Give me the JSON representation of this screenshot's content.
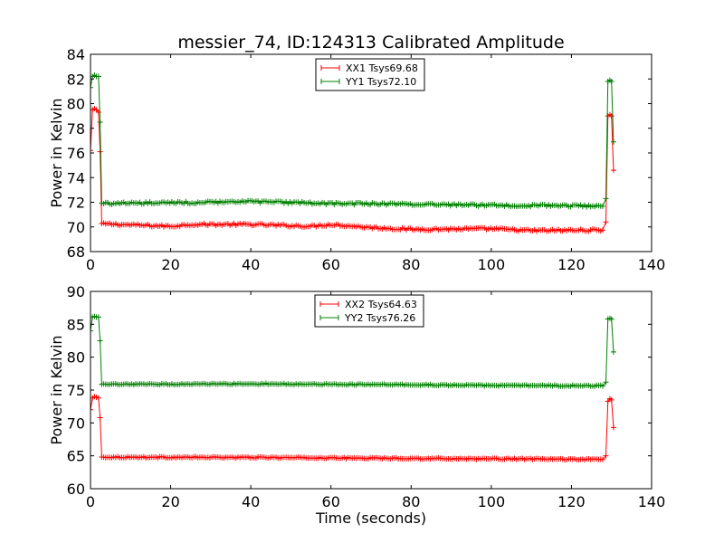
{
  "figure": {
    "title": "messier_74, ID:124313 Calibrated Amplitude"
  },
  "chart_data": [
    {
      "type": "line",
      "title": "messier_74, ID:124313 Calibrated Amplitude",
      "xlabel": "",
      "ylabel": "Power in Kelvin",
      "xlim": [
        0,
        140
      ],
      "ylim": [
        68,
        84
      ],
      "xticks": [
        0,
        20,
        40,
        60,
        80,
        100,
        120,
        140
      ],
      "yticks": [
        68,
        70,
        72,
        74,
        76,
        78,
        80,
        82,
        84
      ],
      "grid": false,
      "legend_position": "top-center",
      "marker": "plus",
      "series": [
        {
          "name": "XX1 Tsys69.68",
          "color": "#ff0000",
          "pre": [
            [
              0,
              76.2
            ],
            [
              0.5,
              79.5
            ],
            [
              1.0,
              79.6
            ],
            [
              1.5,
              79.5
            ],
            [
              2.0,
              79.3
            ],
            [
              2.4,
              76.1
            ]
          ],
          "baseline_start": 2.8,
          "baseline_end": 128.2,
          "baseline_step": 0.5,
          "baseline": [
            [
              2.8,
              70.25
            ],
            [
              20,
              70.05
            ],
            [
              25,
              70.2
            ],
            [
              40,
              70.2
            ],
            [
              55,
              70.05
            ],
            [
              60,
              70.2
            ],
            [
              70,
              69.95
            ],
            [
              80,
              69.8
            ],
            [
              100,
              69.85
            ],
            [
              110,
              69.7
            ],
            [
              128.2,
              69.75
            ]
          ],
          "baseline_noise": 0.09,
          "post": [
            [
              128.6,
              70.4
            ],
            [
              129.1,
              79.0
            ],
            [
              129.6,
              79.1
            ],
            [
              130.0,
              79.0
            ],
            [
              130.5,
              74.6
            ]
          ]
        },
        {
          "name": "YY1 Tsys72.10",
          "color": "#008000",
          "pre": [
            [
              0,
              81.3
            ],
            [
              0.5,
              82.2
            ],
            [
              1.0,
              82.3
            ],
            [
              1.5,
              82.2
            ],
            [
              2.0,
              82.2
            ],
            [
              2.4,
              78.5
            ]
          ],
          "baseline_start": 2.8,
          "baseline_end": 128.2,
          "baseline_step": 0.5,
          "baseline": [
            [
              2.8,
              71.9
            ],
            [
              20,
              71.95
            ],
            [
              40,
              72.05
            ],
            [
              60,
              71.9
            ],
            [
              80,
              71.85
            ],
            [
              100,
              71.75
            ],
            [
              128.2,
              71.7
            ]
          ],
          "baseline_noise": 0.09,
          "post": [
            [
              128.6,
              72.3
            ],
            [
              129.1,
              81.8
            ],
            [
              129.6,
              81.9
            ],
            [
              130.0,
              81.8
            ],
            [
              130.5,
              76.9
            ]
          ]
        }
      ]
    },
    {
      "type": "line",
      "title": "",
      "xlabel": "Time (seconds)",
      "ylabel": "Power in Kelvin",
      "xlim": [
        0,
        140
      ],
      "ylim": [
        60,
        90
      ],
      "xticks": [
        0,
        20,
        40,
        60,
        80,
        100,
        120,
        140
      ],
      "yticks": [
        60,
        65,
        70,
        75,
        80,
        85,
        90
      ],
      "grid": false,
      "legend_position": "top-center",
      "marker": "plus",
      "series": [
        {
          "name": "XX2 Tsys64.63",
          "color": "#ff0000",
          "pre": [
            [
              0,
              72.0
            ],
            [
              0.5,
              73.8
            ],
            [
              1.0,
              74.0
            ],
            [
              1.5,
              73.9
            ],
            [
              2.0,
              73.8
            ],
            [
              2.4,
              70.8
            ]
          ],
          "baseline_start": 2.8,
          "baseline_end": 128.2,
          "baseline_step": 0.5,
          "baseline": [
            [
              2.8,
              64.8
            ],
            [
              40,
              64.75
            ],
            [
              80,
              64.6
            ],
            [
              100,
              64.55
            ],
            [
              128.2,
              64.45
            ]
          ],
          "baseline_noise": 0.09,
          "post": [
            [
              128.6,
              65.0
            ],
            [
              129.1,
              73.3
            ],
            [
              129.6,
              73.7
            ],
            [
              130.0,
              73.5
            ],
            [
              130.5,
              69.3
            ]
          ]
        },
        {
          "name": "YY2 Tsys76.26",
          "color": "#008000",
          "pre": [
            [
              0,
              84.0
            ],
            [
              0.5,
              86.1
            ],
            [
              1.0,
              86.2
            ],
            [
              1.5,
              86.1
            ],
            [
              2.0,
              86.1
            ],
            [
              2.4,
              82.5
            ]
          ],
          "baseline_start": 2.8,
          "baseline_end": 128.2,
          "baseline_step": 0.5,
          "baseline": [
            [
              2.8,
              75.85
            ],
            [
              40,
              75.95
            ],
            [
              80,
              75.8
            ],
            [
              100,
              75.7
            ],
            [
              128.2,
              75.65
            ]
          ],
          "baseline_noise": 0.09,
          "post": [
            [
              128.6,
              76.2
            ],
            [
              129.1,
              85.8
            ],
            [
              129.6,
              85.9
            ],
            [
              130.0,
              85.8
            ],
            [
              130.5,
              80.8
            ]
          ]
        }
      ]
    }
  ]
}
